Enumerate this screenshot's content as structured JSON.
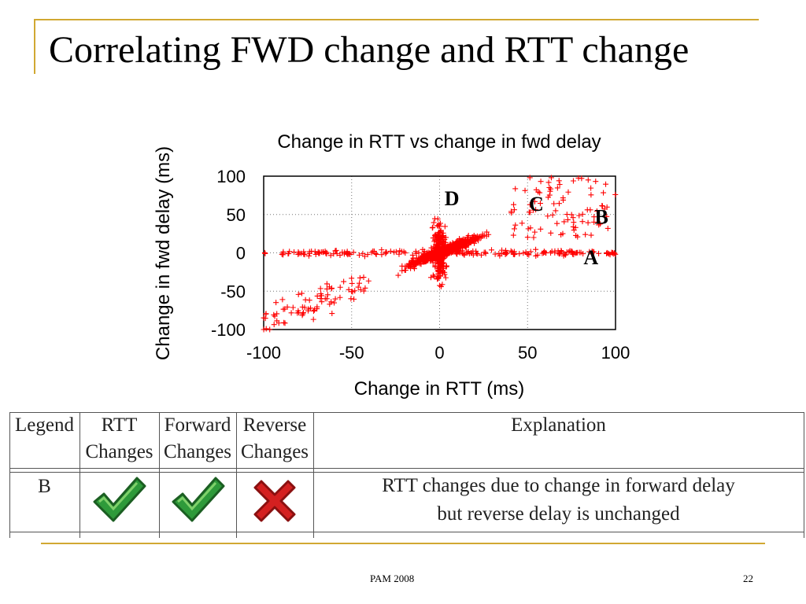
{
  "slide": {
    "title": "Correlating FWD change and RTT change",
    "footer": "PAM 2008",
    "page_number": "22"
  },
  "colors": {
    "accent": "#d1a832",
    "points": "#ff0000",
    "check": "#2e9a3a",
    "cross": "#d42020"
  },
  "chart_data": {
    "type": "scatter",
    "title": "Change in RTT vs change in fwd delay",
    "xlabel": "Change in RTT (ms)",
    "ylabel": "Change in fwd delay (ms)",
    "xlim": [
      -100,
      100
    ],
    "ylim": [
      -100,
      100
    ],
    "x_ticks": [
      "-100",
      "-50",
      "0",
      "50",
      "100"
    ],
    "y_ticks": [
      "100",
      "50",
      "0",
      "-50",
      "-100"
    ],
    "grid": "dotted",
    "marker": "+",
    "annotations": [
      {
        "label": "D",
        "x": 7,
        "y": 62
      },
      {
        "label": "C",
        "x": 55,
        "y": 55
      },
      {
        "label": "B",
        "x": 92,
        "y": 38
      },
      {
        "label": "A",
        "x": 86,
        "y": -15
      }
    ],
    "series": [
      {
        "marker": "+",
        "point_groups": [
          {
            "pattern": "diagonal cluster",
            "x_range": [
              -40,
              45
            ],
            "relation": "fwd ≈ rtt",
            "approx_points": 700
          },
          {
            "pattern": "vertical band near x=0",
            "x_range": [
              -8,
              8
            ],
            "y_range": [
              -90,
              95
            ],
            "approx_points": 220
          },
          {
            "pattern": "horizontal band near y=0",
            "x_range": [
              -100,
              100
            ],
            "y_range": [
              -8,
              8
            ],
            "approx_points": 200
          },
          {
            "pattern": "negative tail",
            "x_range": [
              -100,
              -40
            ],
            "y_range": [
              -100,
              -20
            ],
            "approx_points": 80
          },
          {
            "pattern": "upper-right scatter",
            "x_range": [
              40,
              100
            ],
            "y_range": [
              20,
              100
            ],
            "approx_points": 90
          }
        ]
      }
    ]
  },
  "legend_table": {
    "headers": [
      "Legend",
      "RTT\nChanges",
      "Forward\nChanges",
      "Reverse\nChanges",
      "Explanation"
    ],
    "rows": [
      {
        "legend": "B",
        "rtt_changes": "check",
        "forward_changes": "check",
        "reverse_changes": "cross",
        "explanation_line1": "RTT changes due to change in forward delay",
        "explanation_line2": "but reverse delay is unchanged"
      }
    ]
  }
}
